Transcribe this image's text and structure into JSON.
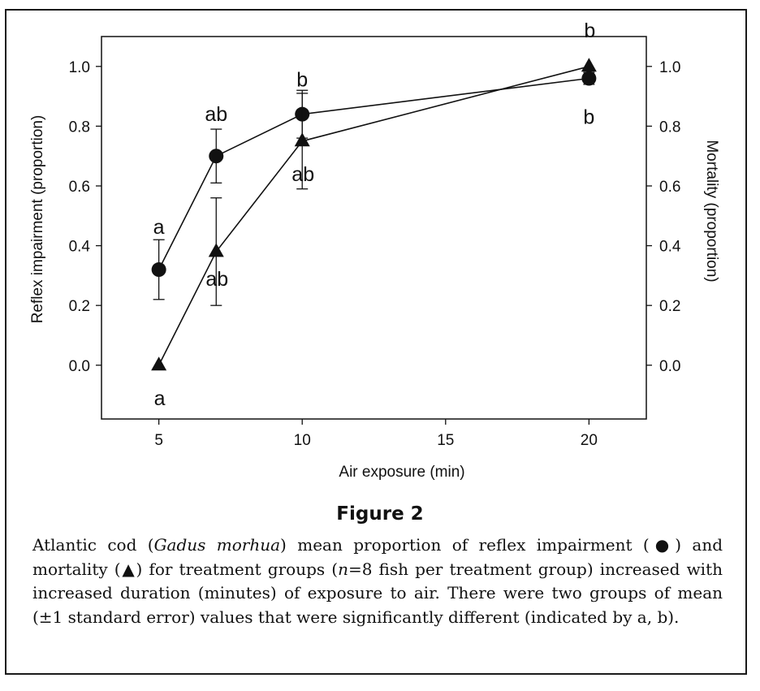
{
  "figure": {
    "title": "Figure 2",
    "caption": {
      "part1": "Atlantic cod (",
      "species": "Gadus morhua",
      "part2": ") mean proportion of reflex impairment (●) and mortality (▲) for treatment groups (",
      "n_symbol": "n",
      "part3": "=8 fish per treatment group) increased with increased duration (minutes) of exposure to air. There were two groups of mean (±1 standard error) values that were significantly different (indicated by a, b)."
    }
  },
  "chart_data": {
    "type": "line",
    "xlabel": "Air exposure (min)",
    "ylabel_left": "Reflex impairment (proportion)",
    "ylabel_right": "Mortality (proportion)",
    "xlim": [
      3,
      22
    ],
    "ylim": [
      -0.18,
      1.1
    ],
    "x_ticks": [
      5,
      10,
      15,
      20
    ],
    "x_tick_labels": [
      "5",
      "10",
      "15",
      "20"
    ],
    "y_ticks": [
      0.0,
      0.2,
      0.4,
      0.6,
      0.8,
      1.0
    ],
    "y_tick_labels": [
      "0.0",
      "0.2",
      "0.4",
      "0.6",
      "0.8",
      "1.0"
    ],
    "grid": false,
    "series": [
      {
        "marker": "circle",
        "x": [
          5,
          7,
          10,
          20
        ],
        "y": [
          0.32,
          0.7,
          0.84,
          0.96
        ],
        "err": [
          0.1,
          0.09,
          0.08,
          0.02
        ],
        "labels": [
          "a",
          "ab",
          "b",
          "b"
        ]
      },
      {
        "marker": "triangle",
        "x": [
          5,
          7,
          10,
          20
        ],
        "y": [
          0.0,
          0.38,
          0.75,
          1.0
        ],
        "err": [
          0.0,
          0.18,
          0.16,
          0.0
        ],
        "labels": [
          "a",
          "ab",
          "ab",
          "b"
        ]
      }
    ]
  }
}
